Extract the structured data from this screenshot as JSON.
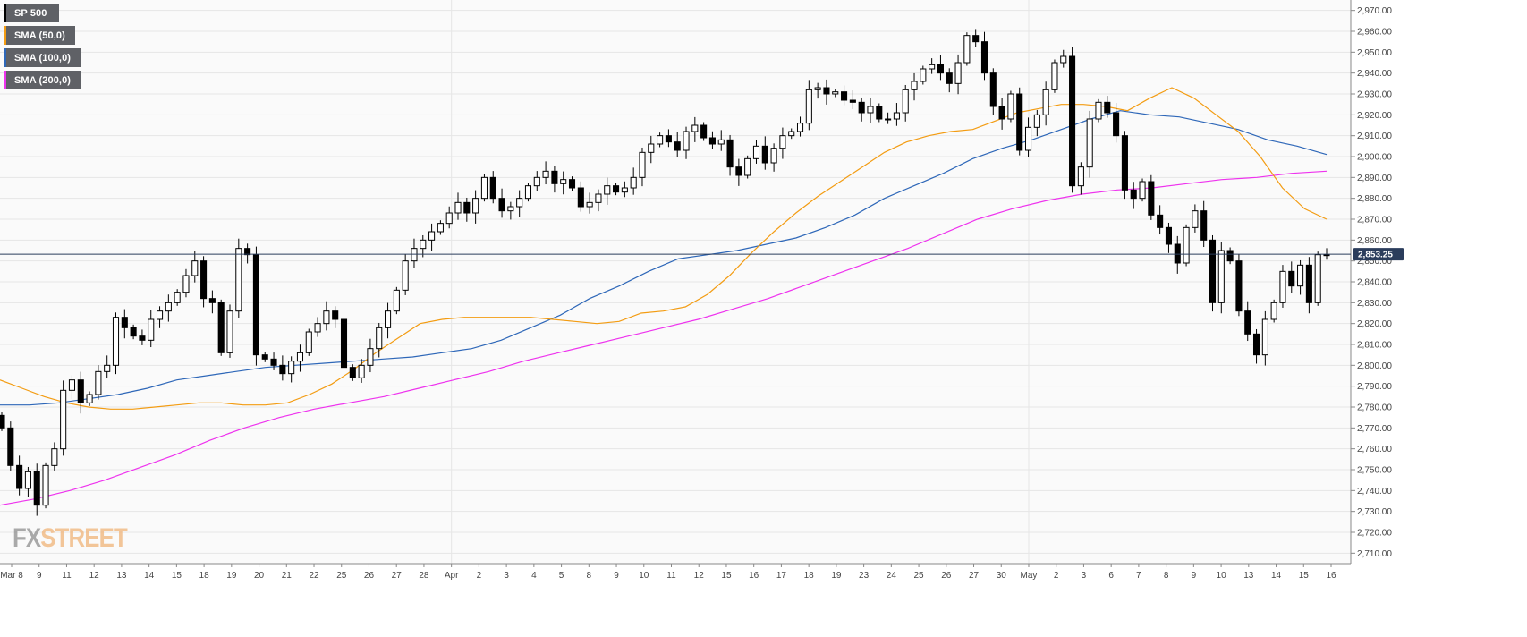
{
  "legend": {
    "items": [
      {
        "label": "SP 500",
        "color": "#000000"
      },
      {
        "label": "SMA (50,0)",
        "color": "#f39c12"
      },
      {
        "label": "SMA (100,0)",
        "color": "#2e67b8"
      },
      {
        "label": "SMA (200,0)",
        "color": "#ee33ee"
      }
    ]
  },
  "logo": {
    "part1": "FX",
    "part2": "STREET"
  },
  "chart_data": {
    "type": "candlestick",
    "title": "",
    "xlabel": "",
    "ylabel": "",
    "ylim": [
      2705,
      2975
    ],
    "y_ticks": [
      "2,710.00",
      "2,720.00",
      "2,730.00",
      "2,740.00",
      "2,750.00",
      "2,760.00",
      "2,770.00",
      "2,780.00",
      "2,790.00",
      "2,800.00",
      "2,810.00",
      "2,820.00",
      "2,830.00",
      "2,840.00",
      "2,850.00",
      "2,860.00",
      "2,870.00",
      "2,880.00",
      "2,890.00",
      "2,900.00",
      "2,910.00",
      "2,920.00",
      "2,930.00",
      "2,940.00",
      "2,950.00",
      "2,960.00",
      "2,970.00"
    ],
    "x_labels": [
      "Mar 8",
      "9",
      "11",
      "12",
      "13",
      "14",
      "15",
      "18",
      "19",
      "20",
      "21",
      "22",
      "25",
      "26",
      "27",
      "28",
      "Apr",
      "2",
      "3",
      "4",
      "5",
      "8",
      "9",
      "10",
      "11",
      "12",
      "15",
      "16",
      "17",
      "18",
      "19",
      "23",
      "24",
      "25",
      "26",
      "27",
      "30",
      "May",
      "2",
      "3",
      "6",
      "7",
      "8",
      "9",
      "10",
      "13",
      "14",
      "15",
      "16"
    ],
    "last_price": 2853.25,
    "last_price_label": "2,853.25",
    "series": [
      {
        "name": "SP 500",
        "type": "candlestick",
        "close": [
          2770,
          2752,
          2741,
          2749,
          2733,
          2752,
          2760,
          2788,
          2793,
          2782,
          2786,
          2797,
          2800,
          2823,
          2818,
          2814,
          2812,
          2822,
          2826,
          2830,
          2835,
          2843,
          2850,
          2832,
          2830,
          2806,
          2826,
          2856,
          2853,
          2805,
          2803,
          2800,
          2796,
          2802,
          2806,
          2816,
          2820,
          2826,
          2822,
          2799,
          2794,
          2800,
          2808,
          2818,
          2826,
          2836,
          2850,
          2856,
          2860,
          2864,
          2868,
          2873,
          2878,
          2873,
          2880,
          2890,
          2880,
          2874,
          2876,
          2880,
          2886,
          2890,
          2893,
          2887,
          2889,
          2885,
          2876,
          2878,
          2882,
          2886,
          2883,
          2885,
          2890,
          2902,
          2906,
          2910,
          2907,
          2903,
          2912,
          2915,
          2909,
          2906,
          2908,
          2895,
          2891,
          2899,
          2905,
          2897,
          2904,
          2910,
          2912,
          2916,
          2932,
          2933,
          2930,
          2931,
          2927,
          2926,
          2921,
          2924,
          2918,
          2918,
          2921,
          2932,
          2936,
          2942,
          2944,
          2940,
          2935,
          2945,
          2958,
          2955,
          2940,
          2924,
          2918,
          2930,
          2903,
          2914,
          2920,
          2932,
          2945,
          2948,
          2886,
          2895,
          2918,
          2926,
          2921,
          2910,
          2884,
          2880,
          2888,
          2872,
          2866,
          2858,
          2849,
          2866,
          2874,
          2860,
          2830,
          2855,
          2850,
          2826,
          2815,
          2805,
          2822,
          2830,
          2845,
          2838,
          2848,
          2830,
          2853,
          2853
        ],
        "color_up": "#ffffff",
        "color_down": "#000000"
      },
      {
        "name": "SMA (50,0)",
        "color": "#f39c12"
      },
      {
        "name": "SMA (100,0)",
        "color": "#2e67b8"
      },
      {
        "name": "SMA (200,0)",
        "color": "#ee33ee"
      }
    ],
    "sma50": [
      2793,
      2789,
      2785,
      2782,
      2780,
      2779,
      2779,
      2780,
      2781,
      2782,
      2782,
      2781,
      2781,
      2782,
      2786,
      2791,
      2798,
      2806,
      2813,
      2820,
      2822,
      2823,
      2823,
      2823,
      2823,
      2822,
      2821,
      2820,
      2821,
      2825,
      2826,
      2828,
      2834,
      2843,
      2854,
      2864,
      2873,
      2881,
      2888,
      2895,
      2902,
      2907,
      2910,
      2912,
      2913,
      2917,
      2921,
      2923,
      2925,
      2925,
      2924,
      2922,
      2928,
      2933,
      2928,
      2920,
      2912,
      2900,
      2885,
      2875,
      2870
    ],
    "sma100": [
      2781,
      2781,
      2782,
      2784,
      2786,
      2789,
      2793,
      2795,
      2797,
      2799,
      2800,
      2801,
      2802,
      2803,
      2804,
      2806,
      2808,
      2812,
      2818,
      2824,
      2832,
      2838,
      2845,
      2851,
      2853,
      2855,
      2858,
      2861,
      2866,
      2872,
      2880,
      2886,
      2892,
      2899,
      2904,
      2908,
      2913,
      2918,
      2922,
      2920,
      2919,
      2916,
      2913,
      2908,
      2905,
      2901
    ],
    "sma200": [
      2733,
      2736,
      2740,
      2745,
      2751,
      2757,
      2764,
      2770,
      2775,
      2779,
      2782,
      2785,
      2789,
      2793,
      2797,
      2802,
      2806,
      2810,
      2814,
      2818,
      2822,
      2827,
      2832,
      2838,
      2844,
      2850,
      2856,
      2863,
      2870,
      2875,
      2879,
      2882,
      2884,
      2885,
      2887,
      2889,
      2890,
      2892,
      2893
    ]
  }
}
